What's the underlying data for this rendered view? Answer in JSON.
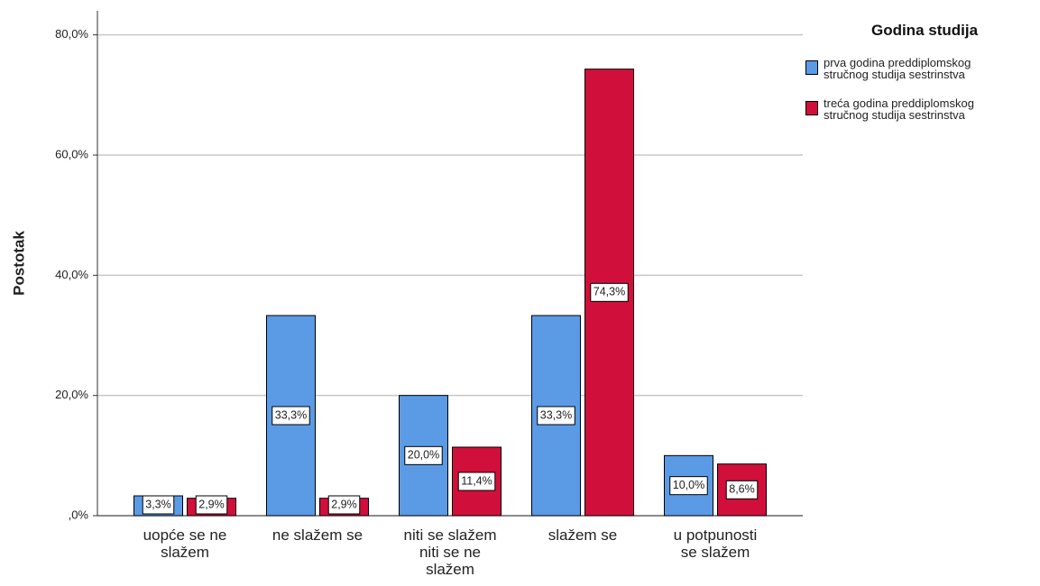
{
  "chart_data": {
    "type": "bar",
    "y_label": "Postotak",
    "legend_title": "Godina studija",
    "legend": "right",
    "grid": true,
    "categories": [
      [
        "uopće se ne",
        "slažem"
      ],
      [
        "ne slažem se"
      ],
      [
        "niti se slažem",
        "niti se ne",
        "slažem"
      ],
      [
        "slažem se"
      ],
      [
        "u potpunosti",
        "se slažem"
      ]
    ],
    "series": [
      {
        "name": "prva godina preddiplomskog stručnog studija sestrinstva",
        "color": "#5b9be6",
        "values": [
          3.3,
          33.3,
          20.0,
          33.3,
          10.0
        ],
        "value_labels": [
          "3,3%",
          "33,3%",
          "20,0%",
          "33,3%",
          "10,0%"
        ]
      },
      {
        "name": "treća godina preddiplomskog stručnog studija sestrinstva",
        "color": "#d0103a",
        "values": [
          2.9,
          2.9,
          11.4,
          74.3,
          8.6
        ],
        "value_labels": [
          "2,9%",
          "2,9%",
          "11,4%",
          "74,3%",
          "8,6%"
        ]
      }
    ],
    "ylim": [
      0,
      84
    ],
    "yticks": [
      {
        "value": 0,
        "label": ",0%"
      },
      {
        "value": 20,
        "label": "20,0%"
      },
      {
        "value": 40,
        "label": "40,0%"
      },
      {
        "value": 60,
        "label": "60,0%"
      },
      {
        "value": 80,
        "label": "80,0%"
      }
    ]
  }
}
